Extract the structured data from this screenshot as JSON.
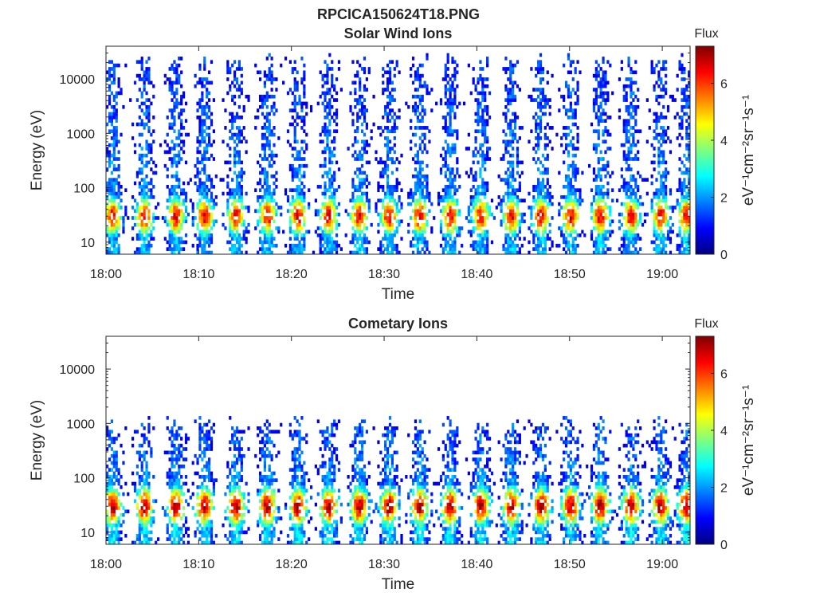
{
  "figure_title": "RPCICA150624T18.PNG",
  "colormap_stops": [
    "#00007f",
    "#0000ff",
    "#007fff",
    "#00ffff",
    "#7fff7f",
    "#ffff00",
    "#ff7f00",
    "#ff0000",
    "#7f0000"
  ],
  "chart_data": [
    {
      "type": "heatmap",
      "title": "Solar Wind Ions",
      "xlabel": "Time",
      "ylabel": "Energy (eV)",
      "x_unit": "HH:MM (2015-06-24)",
      "xlim": [
        "18:00",
        "19:03"
      ],
      "x_ticks": [
        "18:00",
        "18:10",
        "18:20",
        "18:30",
        "18:40",
        "18:50",
        "19:00"
      ],
      "y_scale": "log",
      "ylim": [
        6,
        40000
      ],
      "y_ticks": [
        10,
        100,
        1000,
        10000
      ],
      "y_tick_labels": [
        "10",
        "100",
        "1000",
        "10000"
      ],
      "colorbar": {
        "title": "Flux",
        "label": "eV⁻¹cm⁻²sr⁻¹s⁻¹",
        "range": [
          0,
          7.3
        ],
        "ticks": [
          0,
          2,
          4,
          6
        ],
        "tick_labels": [
          "0",
          "2",
          "4",
          "6"
        ]
      },
      "burst_times_min": [
        0.6,
        4.0,
        7.4,
        10.5,
        13.9,
        17.3,
        20.6,
        23.9,
        27.2,
        30.4,
        33.7,
        37.0,
        40.3,
        43.6,
        46.8,
        50.0,
        53.2,
        56.5,
        59.7,
        62.5
      ],
      "burst_profile": {
        "upper_energy_eV": 15000,
        "peak_energy_eV": 30,
        "peak_flux": 6.5,
        "background_flux_high_energy": 1.3
      }
    },
    {
      "type": "heatmap",
      "title": "Cometary Ions",
      "xlabel": "Time",
      "ylabel": "Energy (eV)",
      "x_unit": "HH:MM (2015-06-24)",
      "xlim": [
        "18:00",
        "19:03"
      ],
      "x_ticks": [
        "18:00",
        "18:10",
        "18:20",
        "18:30",
        "18:40",
        "18:50",
        "19:00"
      ],
      "y_scale": "log",
      "ylim": [
        6,
        40000
      ],
      "y_ticks": [
        10,
        100,
        1000,
        10000
      ],
      "y_tick_labels": [
        "10",
        "100",
        "1000",
        "10000"
      ],
      "colorbar": {
        "title": "Flux",
        "label": "eV⁻¹cm⁻²sr⁻¹s⁻¹",
        "range": [
          0,
          7.3
        ],
        "ticks": [
          0,
          2,
          4,
          6
        ],
        "tick_labels": [
          "0",
          "2",
          "4",
          "6"
        ]
      },
      "burst_times_min": [
        0.6,
        4.0,
        7.4,
        10.5,
        13.9,
        17.3,
        20.6,
        23.9,
        27.2,
        30.4,
        33.7,
        37.0,
        40.3,
        43.6,
        46.8,
        50.0,
        53.2,
        56.5,
        59.7,
        62.5
      ],
      "burst_profile": {
        "upper_energy_eV": 700,
        "peak_energy_eV": 30,
        "peak_flux": 7.0,
        "background_flux_high_energy": 1.5
      }
    }
  ]
}
